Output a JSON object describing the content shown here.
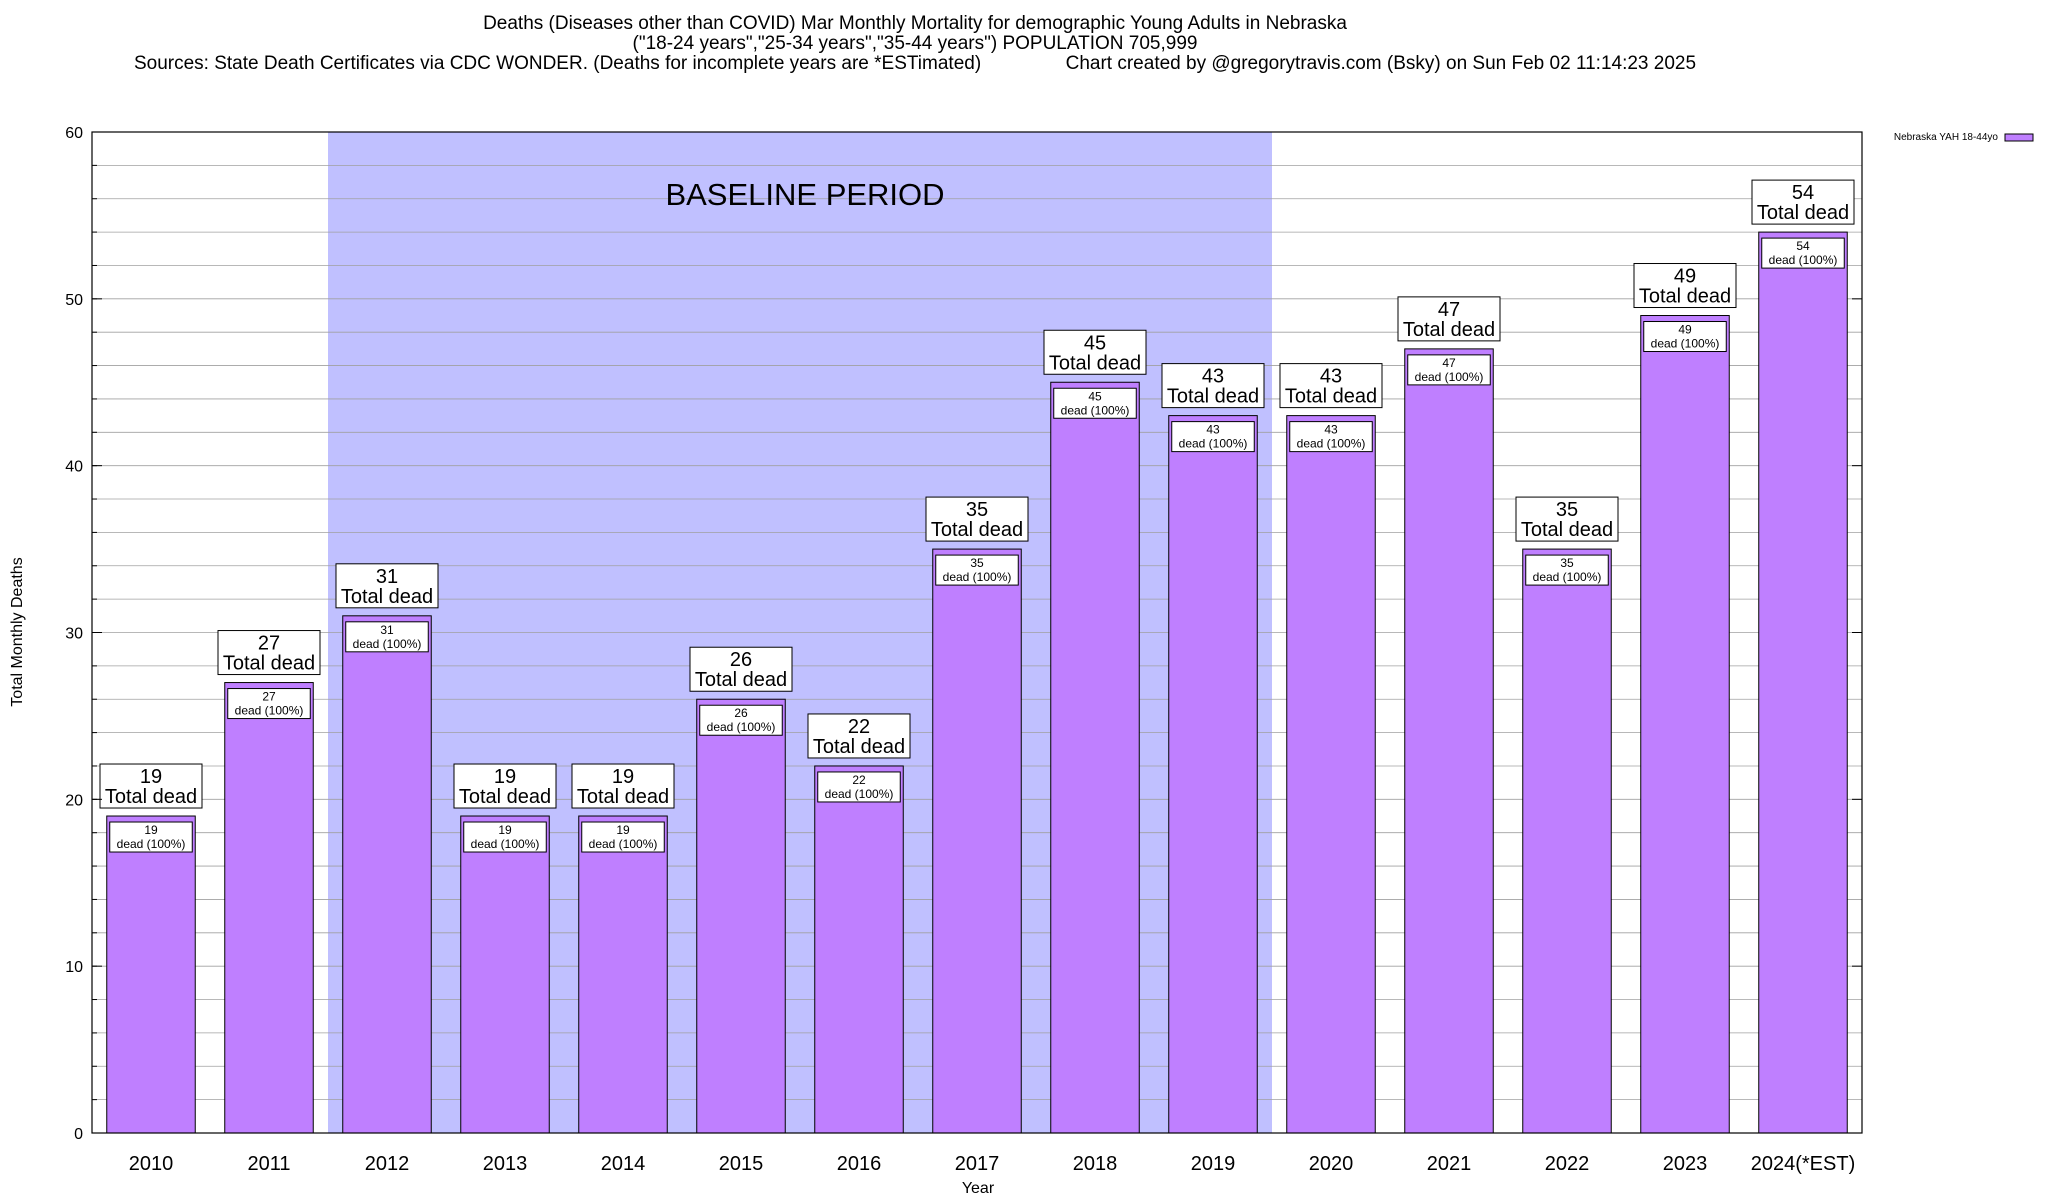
{
  "chart_data": {
    "type": "bar",
    "title_lines": [
      "Deaths (Diseases other than COVID) Mar Monthly Mortality for demographic Young Adults in Nebraska",
      "(\"18-24 years\",\"25-34 years\",\"35-44 years\") POPULATION 705,999",
      "Sources: State Death Certificates via CDC WONDER. (Deaths for incomplete years are *ESTimated)                Chart created by @gregorytravis.com (Bsky) on Sun Feb 02 11:14:23 2025"
    ],
    "xlabel": "Year",
    "ylabel": "Total Monthly Deaths",
    "ylim": [
      0,
      60
    ],
    "y_ticks": [
      0,
      10,
      20,
      30,
      40,
      50,
      60
    ],
    "y_minor_step": 2,
    "grid": true,
    "categories": [
      "2010",
      "2011",
      "2012",
      "2013",
      "2014",
      "2015",
      "2016",
      "2017",
      "2018",
      "2019",
      "2020",
      "2021",
      "2022",
      "2023",
      "2024(*EST)"
    ],
    "series": [
      {
        "name": "Nebraska YAH 18-44yo",
        "values": [
          19,
          27,
          31,
          19,
          19,
          26,
          22,
          35,
          45,
          43,
          43,
          47,
          35,
          49,
          54
        ],
        "color": "#bf7fff"
      }
    ],
    "outer_label_suffix": "Total dead",
    "inner_label_suffix": "dead (100%)",
    "baseline_band": {
      "label": "BASELINE PERIOD",
      "from_category": "2012",
      "to_category": "2019",
      "color": "#c0c0ff"
    },
    "legend_position": "top-right",
    "colors": {
      "bar": "#bf7fff",
      "bar_edge": "#000000",
      "band": "#c0c0ff",
      "grid": "#a0a0a0"
    }
  }
}
